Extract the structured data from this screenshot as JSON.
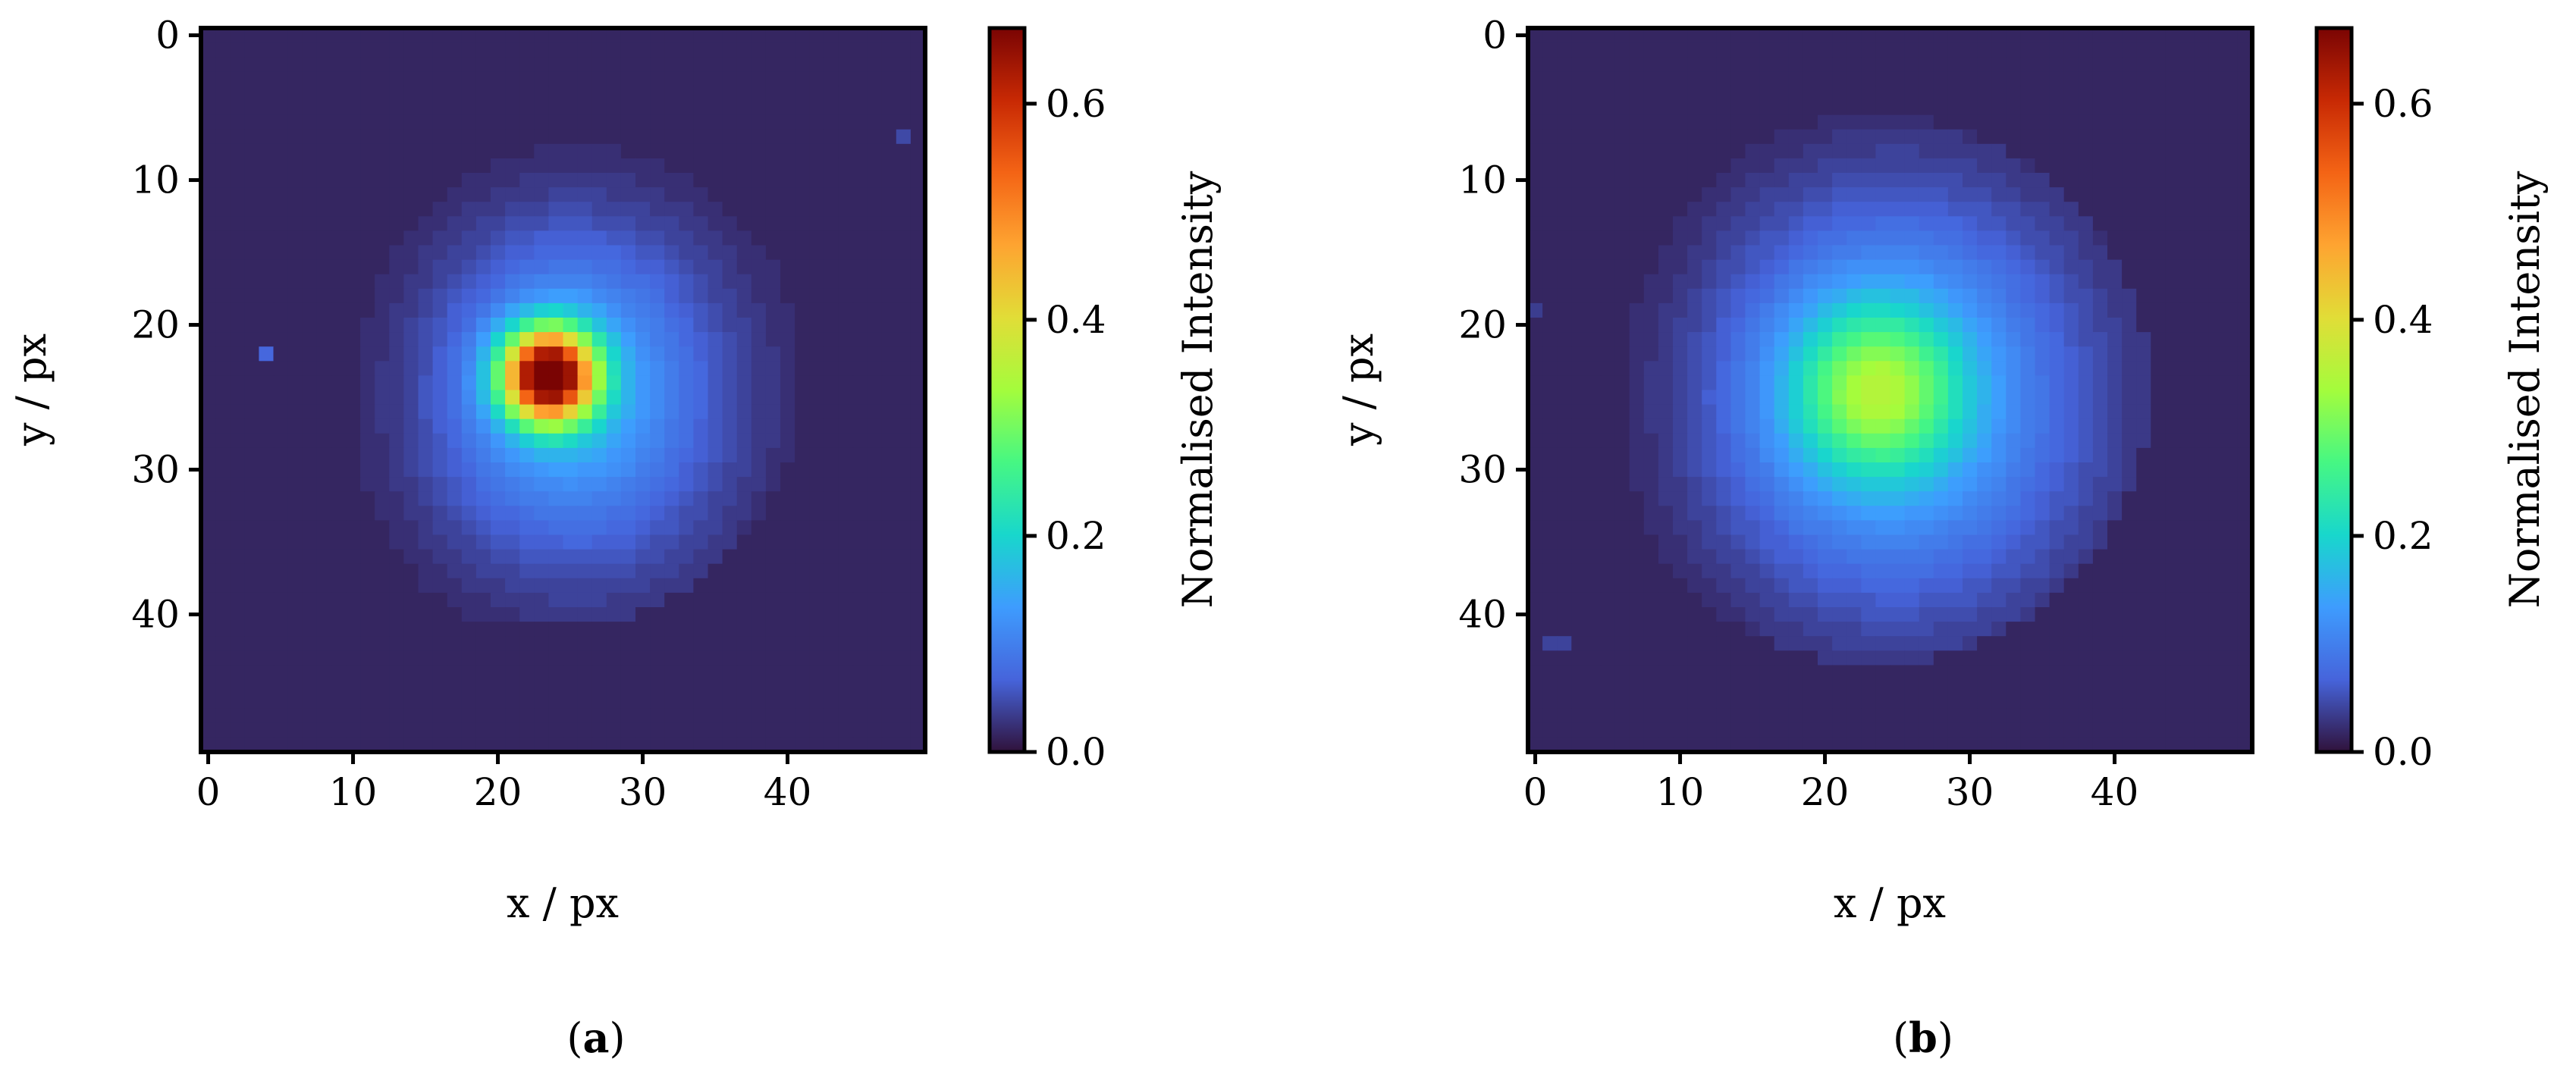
{
  "chart_data": [
    {
      "type": "heatmap",
      "panel_label_open": "(",
      "panel_label": "a",
      "panel_label_close": ")",
      "xlabel": "x / px",
      "ylabel": "y / px",
      "colorbar_label": "Normalised Intensity",
      "colormap": "turbo",
      "grid_size": [
        50,
        50
      ],
      "xlim": [
        -0.5,
        49.5
      ],
      "ylim": [
        49.5,
        -0.5
      ],
      "y_axis_inverted": true,
      "xticks": [
        0,
        10,
        20,
        30,
        40
      ],
      "xtick_labels": [
        "0",
        "10",
        "20",
        "30",
        "40"
      ],
      "yticks": [
        0,
        10,
        20,
        30,
        40
      ],
      "ytick_labels": [
        "0",
        "10",
        "20",
        "30",
        "40"
      ],
      "colorbar_range": [
        0.0,
        0.67
      ],
      "colorbar_ticks": [
        0.0,
        0.2,
        0.4,
        0.6
      ],
      "colorbar_tick_labels": [
        "0.0",
        "0.2",
        "0.4",
        "0.6"
      ],
      "background_value": 0.015,
      "components": [
        {
          "x0": 23.5,
          "y0": 23.5,
          "sx": 2.2,
          "sy": 2.2,
          "amp": 0.62
        },
        {
          "x0": 25.0,
          "y0": 24.5,
          "sx": 5.5,
          "sy": 6.5,
          "amp": 0.11
        },
        {
          "x0": 26.0,
          "y0": 25.5,
          "sx": 10.5,
          "sy": 11.5,
          "amp": 0.055
        }
      ],
      "support_radius": 17.5,
      "quantization_step": 0.008,
      "max_value": 0.67,
      "extra_pixels": [
        {
          "x": 4,
          "y": 22,
          "value": 0.07
        },
        {
          "x": 48,
          "y": 7,
          "value": 0.045
        }
      ]
    },
    {
      "type": "heatmap",
      "panel_label_open": "(",
      "panel_label": "b",
      "panel_label_close": ")",
      "xlabel": "x / px",
      "ylabel": "y / px",
      "colorbar_label": "Normalised Intensity",
      "colormap": "turbo",
      "grid_size": [
        50,
        50
      ],
      "xlim": [
        -0.5,
        49.5
      ],
      "ylim": [
        49.5,
        -0.5
      ],
      "y_axis_inverted": true,
      "xticks": [
        0,
        10,
        20,
        30,
        40
      ],
      "xtick_labels": [
        "0",
        "10",
        "20",
        "30",
        "40"
      ],
      "yticks": [
        0,
        10,
        20,
        30,
        40
      ],
      "ytick_labels": [
        "0",
        "10",
        "20",
        "30",
        "40"
      ],
      "colorbar_range": [
        0.0,
        0.67
      ],
      "colorbar_ticks": [
        0.0,
        0.2,
        0.4,
        0.6
      ],
      "colorbar_tick_labels": [
        "0.0",
        "0.2",
        "0.4",
        "0.6"
      ],
      "background_value": 0.015,
      "components": [
        {
          "x0": 23.5,
          "y0": 24.5,
          "sx": 4.0,
          "sy": 4.0,
          "amp": 0.2
        },
        {
          "x0": 24.5,
          "y0": 25.0,
          "sx": 8.0,
          "sy": 9.0,
          "amp": 0.12
        },
        {
          "x0": 26.5,
          "y0": 26.0,
          "sx": 13.0,
          "sy": 13.5,
          "amp": 0.04
        }
      ],
      "support_radius": 19.0,
      "quantization_step": 0.008,
      "max_value": 0.67,
      "extra_pixels": [
        {
          "x": 1,
          "y": 42,
          "value": 0.04
        },
        {
          "x": 2,
          "y": 42,
          "value": 0.04
        },
        {
          "x": 0,
          "y": 19,
          "value": 0.035
        }
      ]
    }
  ]
}
